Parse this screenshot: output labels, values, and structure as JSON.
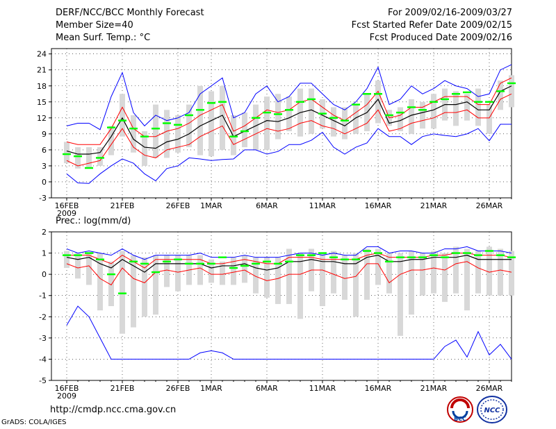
{
  "header": {
    "title": "DERF/NCC/BCC Monthly Forecast",
    "member_size": "Member Size=40",
    "variable": "Mean Surf. Temp.: °C",
    "period": "For 2009/02/16-2009/03/27",
    "started": "Fcst Started Refer Date 2009/02/15",
    "produced": "Fcst Produced Date 2009/02/16"
  },
  "colors": {
    "envelope": "#0000ff",
    "spread": "#ff0000",
    "mean": "#000000",
    "median_tick": "#00ff00",
    "box": "#d8d8d8"
  },
  "footer": {
    "url": "http://cmdp.ncc.cma.gov.cn",
    "credit": "GrADS: COLA/IGES",
    "logo1_text": "BCC",
    "logo2_text": "NCC"
  },
  "chart_data": [
    {
      "type": "line",
      "title": "Mean Surf. Temp.: °C",
      "ylim": [
        -3,
        25
      ],
      "yticks": [
        -3,
        0,
        3,
        6,
        9,
        12,
        15,
        18,
        21,
        24
      ],
      "xtick_labels": [
        "16FEB",
        "21FEB",
        "26FEB",
        "1MAR",
        "6MAR",
        "11MAR",
        "16MAR",
        "21MAR",
        "26MAR"
      ],
      "xtick_days": [
        0,
        5,
        10,
        13,
        18,
        23,
        28,
        33,
        38
      ],
      "year_label": "2009",
      "series": [
        {
          "name": "max",
          "values": [
            10.5,
            11,
            11,
            9.8,
            16,
            20.5,
            13,
            10.5,
            12.5,
            11.5,
            12,
            13,
            16.5,
            18,
            19.5,
            12,
            13,
            16.5,
            18,
            15,
            16,
            18.5,
            18.5,
            16.5,
            14.5,
            13.5,
            15,
            17.5,
            21.5,
            14.5,
            15.5,
            18,
            16.5,
            17.5,
            19,
            18,
            17.5,
            16,
            16.5,
            21,
            22
          ]
        },
        {
          "name": "upper",
          "values": [
            7.5,
            7,
            7,
            7,
            10,
            14,
            10,
            8.5,
            8.5,
            9.5,
            10,
            11,
            12.5,
            13.5,
            14.5,
            9.5,
            10.5,
            12,
            13.5,
            13,
            13.5,
            15,
            15.5,
            14,
            12.5,
            11.5,
            13,
            14.5,
            17,
            12,
            12.5,
            14,
            14,
            15,
            16,
            16,
            16,
            14.5,
            14.5,
            18.5,
            19.5
          ]
        },
        {
          "name": "mean",
          "values": [
            5.8,
            5.2,
            5.2,
            5.5,
            8.5,
            12,
            8,
            6.5,
            6.3,
            7.5,
            8,
            9,
            10.5,
            11.5,
            12.5,
            8.5,
            9.5,
            10.5,
            11.5,
            11.3,
            12,
            13,
            13.5,
            12.5,
            11.5,
            10.5,
            12,
            13,
            15.5,
            11,
            11.5,
            12.5,
            13,
            13.5,
            14.5,
            14.5,
            15,
            13.5,
            13.5,
            17,
            18
          ]
        },
        {
          "name": "lower",
          "values": [
            4,
            3,
            3.5,
            4,
            7,
            10,
            6.5,
            5,
            4.5,
            6,
            6.5,
            7,
            8.5,
            9.5,
            10.5,
            7,
            8,
            9,
            10,
            9.5,
            10,
            11,
            11.5,
            10.5,
            10,
            9,
            10,
            11,
            13.5,
            9.5,
            10,
            11,
            11.5,
            12,
            13,
            13,
            13.5,
            12,
            12,
            15.5,
            16.5
          ]
        },
        {
          "name": "min",
          "values": [
            1.5,
            -0.2,
            -0.3,
            1.5,
            3,
            4.3,
            3.5,
            1.5,
            0.2,
            2.5,
            3,
            4.5,
            4.3,
            4,
            4.2,
            4.3,
            6,
            6,
            5.2,
            5.7,
            7,
            7,
            7.8,
            9.3,
            6.5,
            5.2,
            6.5,
            7.3,
            10,
            8.5,
            8.5,
            7,
            8.5,
            9,
            8.7,
            8.5,
            9,
            10,
            7.7,
            10.8,
            10.8
          ]
        },
        {
          "name": "median",
          "values": [
            5.2,
            4.8,
            2.6,
            4.5,
            10.2,
            11.5,
            10,
            8.5,
            10,
            11,
            10.7,
            12.5,
            13.5,
            14.8,
            15,
            8.5,
            9.5,
            12,
            13,
            12.7,
            13.5,
            15,
            15.5,
            12.8,
            12,
            11.5,
            14.5,
            16.5,
            16.5,
            12.5,
            13,
            14,
            13.5,
            15,
            15.5,
            16.5,
            16.8,
            15,
            15,
            17,
            18.5
          ]
        },
        {
          "name": "box_high",
          "values": [
            7.5,
            6.5,
            6.5,
            6.5,
            10.5,
            16.5,
            12.5,
            9.5,
            14.5,
            13.5,
            12.5,
            14.5,
            18,
            17,
            18,
            12.5,
            13,
            14.5,
            16,
            16.5,
            16,
            17.5,
            17.5,
            15.5,
            14,
            14,
            14.5,
            16.5,
            19,
            13.5,
            14,
            15.5,
            15,
            16.5,
            17.5,
            17,
            16.5,
            17.5,
            14.5,
            19,
            20
          ]
        },
        {
          "name": "box_low",
          "values": [
            3.5,
            2.5,
            2.5,
            3,
            5,
            8.5,
            5.5,
            3,
            4.5,
            4.5,
            5.5,
            6.5,
            5,
            4.8,
            6,
            5,
            6.5,
            6,
            6,
            8,
            9.5,
            8.5,
            9,
            10,
            8.5,
            8,
            9,
            9.5,
            11,
            10.5,
            9.5,
            9,
            10,
            10,
            11.5,
            10.5,
            11.5,
            10.5,
            9,
            13.5,
            14
          ]
        }
      ]
    },
    {
      "type": "line",
      "title": "Prec.: log(mm/d)",
      "ylim": [
        -5,
        2
      ],
      "yticks": [
        -5,
        -4,
        -3,
        -2,
        -1,
        0,
        1,
        2
      ],
      "xtick_labels": [
        "16FEB",
        "21FEB",
        "26FEB",
        "1MAR",
        "6MAR",
        "11MAR",
        "16MAR",
        "21MAR",
        "26MAR"
      ],
      "xtick_days": [
        0,
        5,
        10,
        13,
        18,
        23,
        28,
        33,
        38
      ],
      "year_label": "2009",
      "series": [
        {
          "name": "max",
          "values": [
            1.2,
            1,
            1.1,
            1,
            0.9,
            1.2,
            0.9,
            0.7,
            0.9,
            0.9,
            0.9,
            0.9,
            1.0,
            0.8,
            0.8,
            0.8,
            0.9,
            0.8,
            0.8,
            0.8,
            0.9,
            1.0,
            1.0,
            0.9,
            1.0,
            0.9,
            0.9,
            1.3,
            1.3,
            1.0,
            1.1,
            1.1,
            1.0,
            1.0,
            1.2,
            1.2,
            1.3,
            1.1,
            1.1,
            1.1,
            1.0
          ]
        },
        {
          "name": "upper",
          "values": [
            0.9,
            0.9,
            0.9,
            0.7,
            0.5,
            0.9,
            0.6,
            0.3,
            0.7,
            0.7,
            0.7,
            0.7,
            0.7,
            0.5,
            0.5,
            0.6,
            0.7,
            0.6,
            0.5,
            0.5,
            0.8,
            0.8,
            0.8,
            0.7,
            0.7,
            0.7,
            0.7,
            0.9,
            1.0,
            0.8,
            0.8,
            0.8,
            0.8,
            0.9,
            0.9,
            1.0,
            1.0,
            0.9,
            0.9,
            0.9,
            0.8
          ]
        },
        {
          "name": "mean",
          "values": [
            0.8,
            0.7,
            0.8,
            0.5,
            0.3,
            0.7,
            0.4,
            0.1,
            0.5,
            0.5,
            0.5,
            0.5,
            0.5,
            0.3,
            0.4,
            0.4,
            0.5,
            0.3,
            0.2,
            0.3,
            0.6,
            0.6,
            0.7,
            0.6,
            0.6,
            0.5,
            0.5,
            0.8,
            0.9,
            0.6,
            0.6,
            0.7,
            0.7,
            0.8,
            0.8,
            0.8,
            0.9,
            0.7,
            0.7,
            0.7,
            0.7
          ]
        },
        {
          "name": "lower",
          "values": [
            0.5,
            0.3,
            0.4,
            -0.2,
            -0.5,
            0.3,
            -0.2,
            -0.4,
            0.1,
            0.2,
            0.1,
            0.2,
            0.3,
            0,
            0,
            0.1,
            0.2,
            -0.1,
            -0.3,
            -0.2,
            0,
            0,
            0.2,
            0.2,
            0,
            -0.2,
            -0.1,
            0.5,
            0.5,
            -0.4,
            0,
            0.2,
            0.2,
            0.3,
            0.2,
            0.5,
            0.6,
            0.3,
            0.1,
            0.2,
            0.1
          ]
        },
        {
          "name": "min",
          "values": [
            -2.4,
            -1.5,
            -2,
            -3,
            -4,
            -4,
            -4,
            -4,
            -4,
            -4,
            -4,
            -4,
            -3.7,
            -3.6,
            -3.7,
            -4,
            -4,
            -4,
            -4,
            -4,
            -4,
            -4,
            -4,
            -4,
            -4,
            -4,
            -4,
            -4,
            -4,
            -4,
            -4,
            -4,
            -4,
            -4,
            -3.4,
            -3.1,
            -3.9,
            -2.7,
            -3.8,
            -3.3,
            -4
          ]
        },
        {
          "name": "median",
          "values": [
            0.9,
            0.9,
            1.0,
            0.7,
            0,
            -0.9,
            0.6,
            0.5,
            0.1,
            0.6,
            0.7,
            0.5,
            0.5,
            0.5,
            0.8,
            0.3,
            0.4,
            0.5,
            0.6,
            0.5,
            0.6,
            0.9,
            0.9,
            1.0,
            0.8,
            0.7,
            0.7,
            1.1,
            1.0,
            0.6,
            0.8,
            0.8,
            0.8,
            0.9,
            0.8,
            1.0,
            1.0,
            0.9,
            1.1,
            0.9,
            0.8
          ]
        },
        {
          "name": "box_high",
          "values": [
            1.1,
            1.0,
            1.0,
            1.0,
            0.6,
            1.1,
            0.9,
            0.8,
            0.9,
            0.9,
            0.9,
            0.9,
            0.9,
            0.7,
            0.6,
            0.8,
            0.9,
            0.8,
            0.8,
            0.8,
            1.2,
            1.0,
            1.2,
            1.0,
            1.1,
            0.9,
            1.0,
            1.2,
            1.2,
            1.0,
            1.0,
            1.1,
            1.0,
            1.1,
            1.0,
            1.3,
            1.2,
            1.1,
            1.3,
            1.2,
            1.1
          ]
        },
        {
          "name": "box_low",
          "values": [
            0.3,
            -0.2,
            -0.5,
            -1.7,
            -1.5,
            -2.8,
            -2.5,
            -2,
            -1.9,
            -0.6,
            -0.8,
            -0.5,
            -0.5,
            -0.4,
            -0.5,
            -0.5,
            -0.4,
            -0.9,
            -1.1,
            -1.4,
            -1.4,
            -2.1,
            -0.8,
            -1.5,
            -0.9,
            -1.2,
            -2.0,
            -1.2,
            -0.5,
            -0.9,
            -2.9,
            -1.9,
            -1.0,
            -0.9,
            -1.3,
            -0.9,
            -1.7,
            -0.9,
            -1.0,
            -1.0,
            -1.0
          ]
        }
      ]
    }
  ]
}
